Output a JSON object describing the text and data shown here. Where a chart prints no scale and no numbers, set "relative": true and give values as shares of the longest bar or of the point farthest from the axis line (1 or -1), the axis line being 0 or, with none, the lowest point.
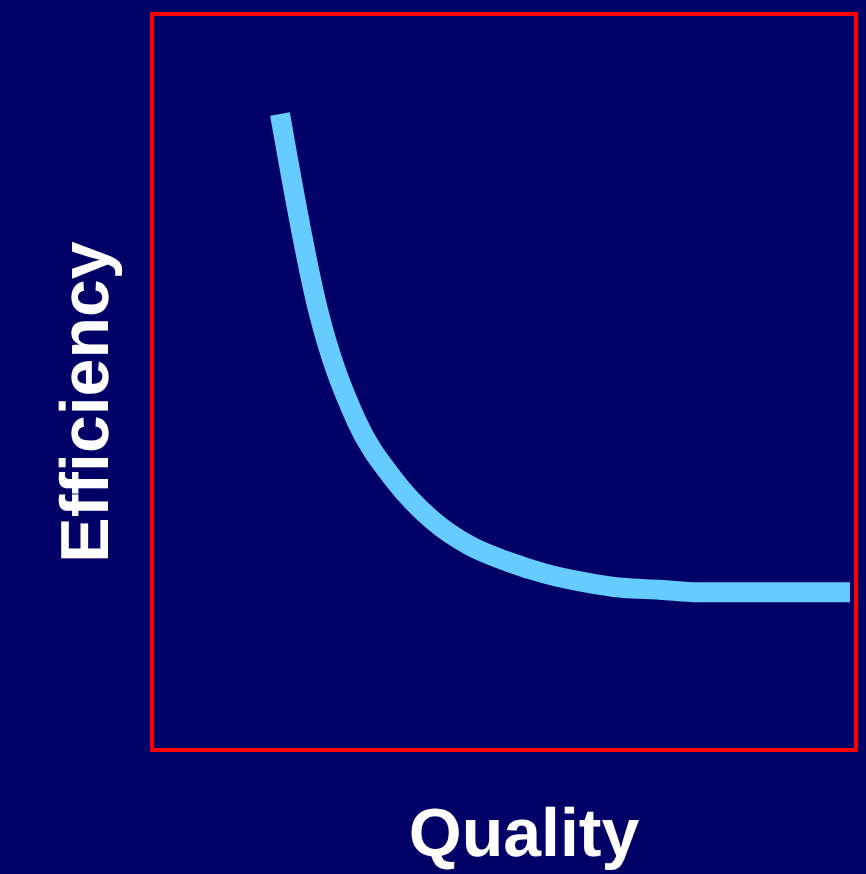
{
  "chart_data": {
    "type": "line",
    "relative": true,
    "xlabel": "Quality",
    "ylabel": "Efficiency",
    "categories": [
      null,
      null,
      null,
      null,
      null,
      null,
      null,
      null,
      null,
      null,
      null,
      null,
      null,
      null,
      null,
      null
    ],
    "series": [
      {
        "color": "#66ccff",
        "values": [
          1,
          0.692,
          0.519,
          0.425,
          0.362,
          0.321,
          0.296,
          0.277,
          0.264,
          0.255,
          0.252,
          0.248,
          0.248,
          0.248,
          0.248,
          0.248
        ]
      }
    ],
    "marker": "none",
    "line_style": "solid"
  }
}
